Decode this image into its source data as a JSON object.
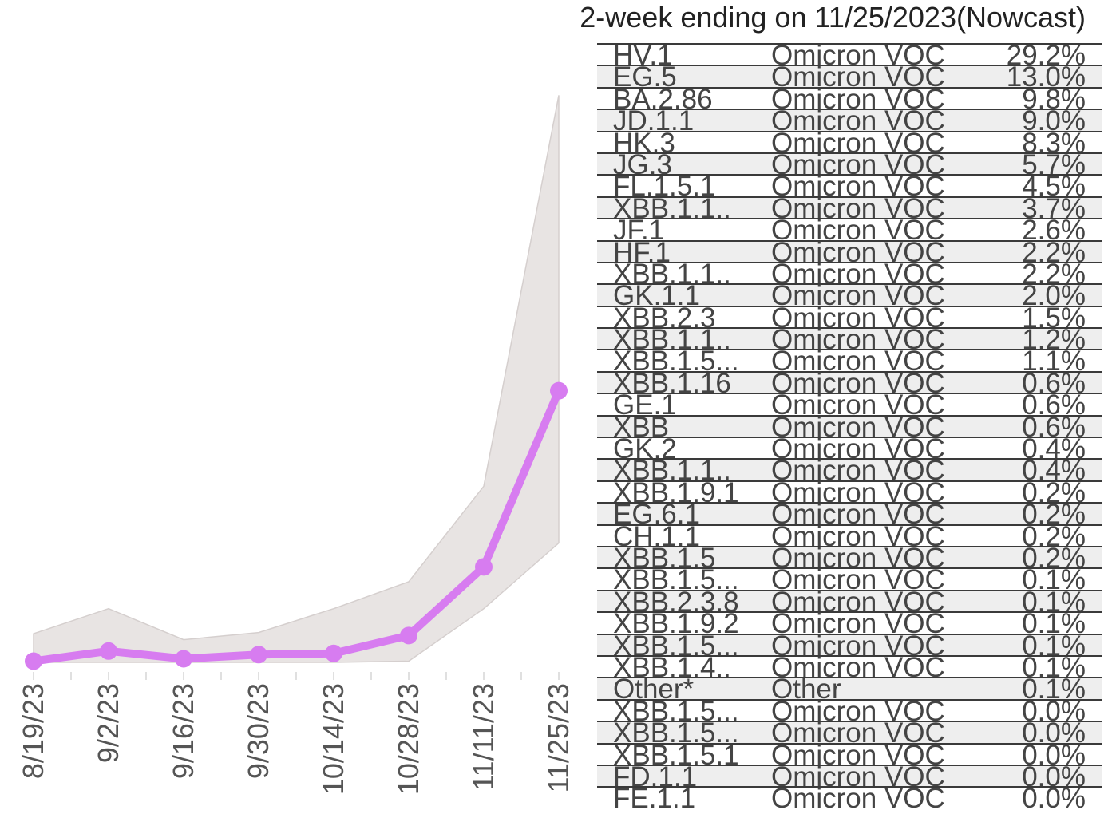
{
  "chart_data": {
    "type": "line",
    "x": [
      "8/19/23",
      "9/2/23",
      "9/16/23",
      "9/30/23",
      "10/14/23",
      "10/28/23",
      "11/11/23",
      "11/25/23"
    ],
    "series": [
      {
        "values": [
          0.2,
          1.9,
          0.6,
          1.3,
          1.5,
          4.5,
          16.0,
          45.5
        ],
        "lower": [
          0.0,
          0.0,
          0.0,
          0.0,
          0.0,
          0.2,
          9.0,
          20.0
        ],
        "upper": [
          4.8,
          9.0,
          3.8,
          5.0,
          9.0,
          13.5,
          29.5,
          95.0
        ]
      }
    ],
    "ylim": [
      0,
      100
    ],
    "colors": {
      "line": "#d77cf0",
      "band": "#e8e4e3",
      "band_edge": "#d5cfce",
      "tick_label": "#555555"
    }
  },
  "table": {
    "title": "2-week ending on 11/25/2023(Nowcast)",
    "rows": [
      {
        "lineage": "HV.1",
        "family": "Omicron  VOC",
        "pct": "29.2%"
      },
      {
        "lineage": "EG.5",
        "family": "Omicron  VOC",
        "pct": "13.0%"
      },
      {
        "lineage": "BA.2.86",
        "family": "Omicron  VOC",
        "pct": "9.8%"
      },
      {
        "lineage": "JD.1.1",
        "family": "Omicron  VOC",
        "pct": "9.0%"
      },
      {
        "lineage": "HK.3",
        "family": "Omicron  VOC",
        "pct": "8.3%"
      },
      {
        "lineage": "JG.3",
        "family": "Omicron  VOC",
        "pct": "5.7%"
      },
      {
        "lineage": "FL.1.5.1",
        "family": "Omicron  VOC",
        "pct": "4.5%"
      },
      {
        "lineage": "XBB.1.1..",
        "family": "Omicron  VOC",
        "pct": "3.7%"
      },
      {
        "lineage": "JF.1",
        "family": "Omicron  VOC",
        "pct": "2.6%"
      },
      {
        "lineage": "HF.1",
        "family": "Omicron  VOC",
        "pct": "2.2%"
      },
      {
        "lineage": "XBB.1.1..",
        "family": "Omicron  VOC",
        "pct": "2.2%"
      },
      {
        "lineage": "GK.1.1",
        "family": "Omicron  VOC",
        "pct": "2.0%"
      },
      {
        "lineage": "XBB.2.3",
        "family": "Omicron  VOC",
        "pct": "1.5%"
      },
      {
        "lineage": "XBB.1.1..",
        "family": "Omicron  VOC",
        "pct": "1.2%"
      },
      {
        "lineage": "XBB.1.5...",
        "family": "Omicron  VOC",
        "pct": "1.1%"
      },
      {
        "lineage": "XBB.1.16",
        "family": "Omicron  VOC",
        "pct": "0.6%"
      },
      {
        "lineage": "GE.1",
        "family": "Omicron  VOC",
        "pct": "0.6%"
      },
      {
        "lineage": "XBB",
        "family": "Omicron  VOC",
        "pct": "0.6%"
      },
      {
        "lineage": "GK.2",
        "family": "Omicron  VOC",
        "pct": "0.4%"
      },
      {
        "lineage": "XBB.1.1..",
        "family": "Omicron  VOC",
        "pct": "0.4%"
      },
      {
        "lineage": "XBB.1.9.1",
        "family": "Omicron  VOC",
        "pct": "0.2%"
      },
      {
        "lineage": "EG.6.1",
        "family": "Omicron  VOC",
        "pct": "0.2%"
      },
      {
        "lineage": "CH.1.1",
        "family": "Omicron  VOC",
        "pct": "0.2%"
      },
      {
        "lineage": "XBB.1.5",
        "family": "Omicron  VOC",
        "pct": "0.2%"
      },
      {
        "lineage": "XBB.1.5...",
        "family": "Omicron  VOC",
        "pct": "0.1%"
      },
      {
        "lineage": "XBB.2.3.8",
        "family": "Omicron  VOC",
        "pct": "0.1%"
      },
      {
        "lineage": "XBB.1.9.2",
        "family": "Omicron  VOC",
        "pct": "0.1%"
      },
      {
        "lineage": "XBB.1.5...",
        "family": "Omicron  VOC",
        "pct": "0.1%"
      },
      {
        "lineage": "XBB.1.4..",
        "family": "Omicron  VOC",
        "pct": "0.1%"
      },
      {
        "lineage": "Other*",
        "family": "Other",
        "pct": "0.1%"
      },
      {
        "lineage": "XBB.1.5...",
        "family": "Omicron  VOC",
        "pct": "0.0%"
      },
      {
        "lineage": "XBB.1.5...",
        "family": "Omicron  VOC",
        "pct": "0.0%"
      },
      {
        "lineage": "XBB.1.5.1",
        "family": "Omicron  VOC",
        "pct": "0.0%"
      },
      {
        "lineage": "FD.1.1",
        "family": "Omicron  VOC",
        "pct": "0.0%"
      },
      {
        "lineage": "FE.1.1",
        "family": "Omicron  VOC",
        "pct": "0.0%"
      }
    ]
  }
}
